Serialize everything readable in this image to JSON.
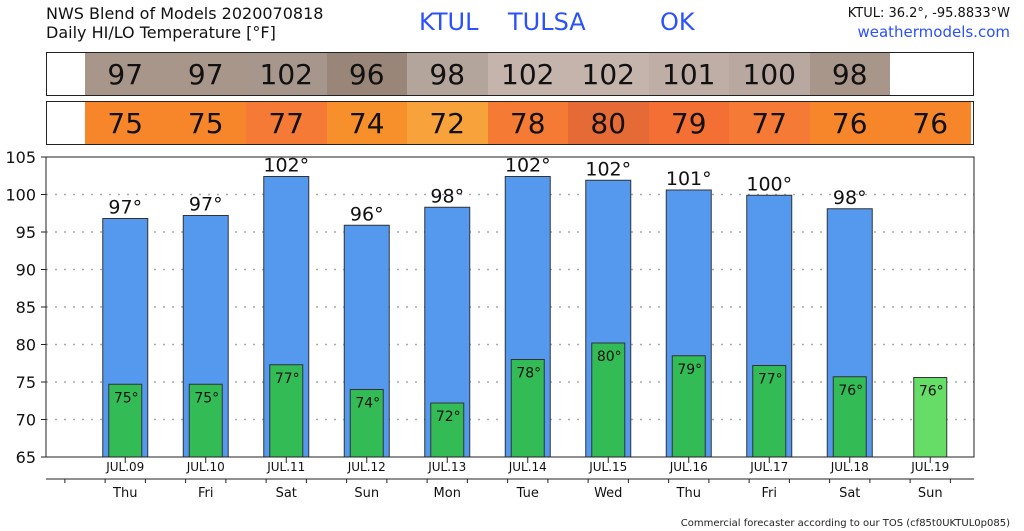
{
  "header": {
    "title_line1": "NWS Blend of Models 2020070818",
    "title_line2": "Daily HI/LO Temperature [°F]",
    "station_code": "KTUL",
    "station_city": "TULSA",
    "station_state": "OK",
    "coords": "KTUL: 36.2°, -95.8833°W",
    "site": "weathermodels.com"
  },
  "footer": "Commercial forecaster according to our TOS (cf85t0UKTUL0p085)",
  "hi_strip": {
    "values": [
      "97",
      "97",
      "102",
      "96",
      "98",
      "102",
      "102",
      "101",
      "100",
      "98",
      ""
    ],
    "colors": [
      "#a8968a",
      "#a8968a",
      "#a6968c",
      "#9a8678",
      "#b4a59c",
      "#c4b4ab",
      "#c4b4ab",
      "#bfaea5",
      "#b8a89f",
      "#a8968a",
      "#ffffff"
    ]
  },
  "lo_strip": {
    "values": [
      "75",
      "75",
      "77",
      "74",
      "72",
      "78",
      "80",
      "79",
      "77",
      "76",
      "76"
    ],
    "colors": [
      "#f7862b",
      "#f7862b",
      "#f47a35",
      "#f7902a",
      "#f7a23a",
      "#f57a33",
      "#e56a35",
      "#f36f33",
      "#f47a35",
      "#f7862b",
      "#f7862b"
    ]
  },
  "chart_data": {
    "type": "bar",
    "categories": [
      "JUL.09",
      "JUL.10",
      "JUL.11",
      "JUL.12",
      "JUL.13",
      "JUL.14",
      "JUL.15",
      "JUL.16",
      "JUL.17",
      "JUL.18",
      "JUL.19"
    ],
    "weekdays": [
      "Thu",
      "Fri",
      "Sat",
      "Sun",
      "Mon",
      "Tue",
      "Wed",
      "Thu",
      "Fri",
      "Sat",
      "Sun"
    ],
    "series": [
      {
        "values": [
          96.8,
          97.2,
          102.4,
          95.9,
          98.3,
          102.4,
          101.9,
          100.6,
          99.9,
          98.1,
          null
        ],
        "labels": [
          "97°",
          "97°",
          "102°",
          "96°",
          "98°",
          "102°",
          "102°",
          "101°",
          "100°",
          "98°",
          ""
        ],
        "color": "#5599ee"
      },
      {
        "values": [
          74.7,
          74.7,
          77.3,
          74.0,
          72.2,
          78.0,
          80.2,
          78.5,
          77.2,
          75.7,
          75.6
        ],
        "labels": [
          "75°",
          "75°",
          "77°",
          "74°",
          "72°",
          "78°",
          "80°",
          "79°",
          "77°",
          "76°",
          "76°"
        ],
        "color": "#33bb55",
        "last_color": "#66dd66"
      }
    ],
    "ylim": [
      65,
      105
    ],
    "yticks": [
      65,
      70,
      75,
      80,
      85,
      90,
      95,
      100,
      105
    ],
    "grid": true
  }
}
